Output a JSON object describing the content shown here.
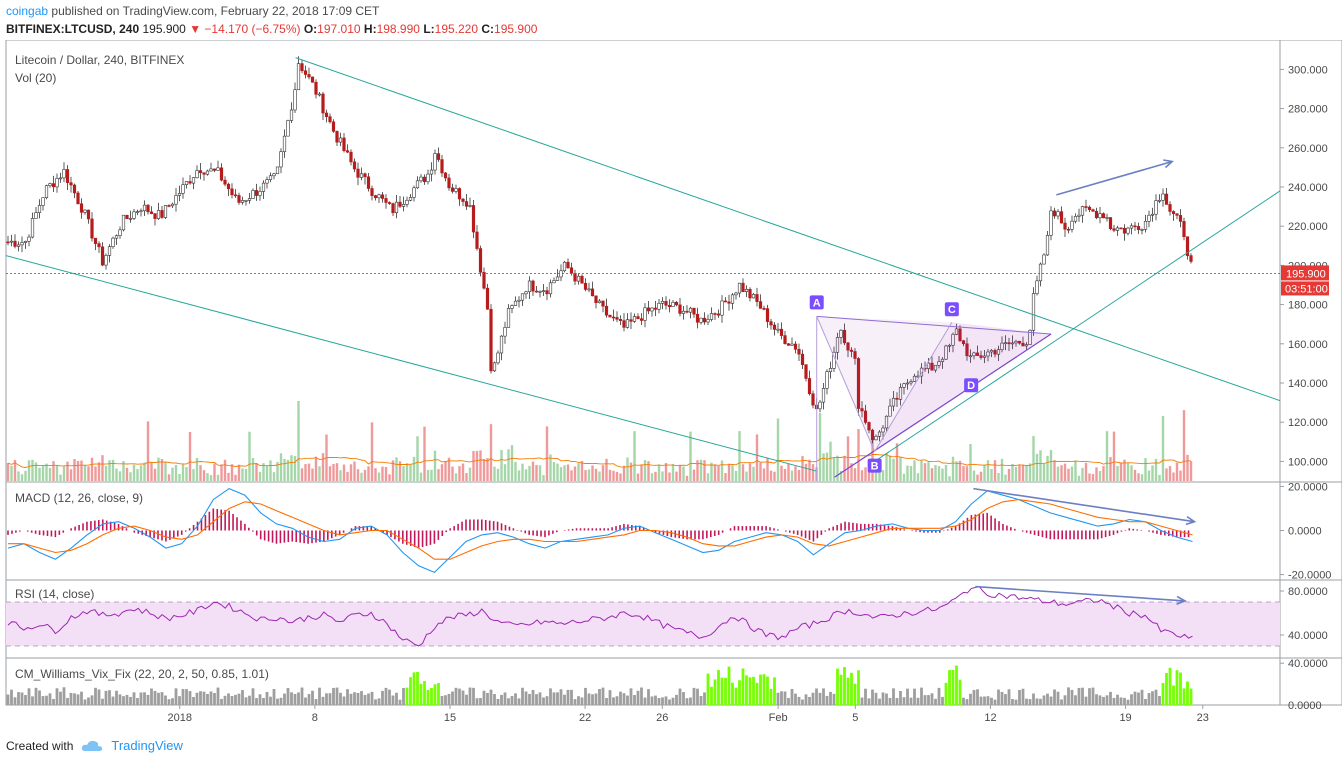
{
  "header": {
    "user": "coingab",
    "published_text": "published on TradingView.com, February 22, 2018 17:09 CET",
    "symbol": "BITFINEX:LTCUSD, 240",
    "last": "195.900",
    "change": "▼ −14.170 (−6.75%)",
    "o_label": "O:",
    "o_value": "197.010",
    "h_label": "H:",
    "h_value": "198.990",
    "l_label": "L:",
    "l_value": "195.220",
    "c_label": "C:",
    "c_value": "195.900"
  },
  "footer": {
    "created_with": "Created with",
    "brand": "TradingView"
  },
  "colors": {
    "up": "#4caf50",
    "down": "#b71c1c",
    "vol_up": "#a5d6a7",
    "vol_down": "#ef9a9a",
    "trend": "#26a69a",
    "pattern": "#9c27b0",
    "macd": "#2196f3",
    "signal": "#ff6d00",
    "rsi": "#9c27b0",
    "rsi_band": "#f3e0f7",
    "divergence": "#6b7fc4",
    "price_line": "#e53935"
  },
  "chart_data": [
    {
      "type": "candlestick",
      "title": "Litecoin / Dollar, 240, BITFINEX",
      "subtitle": "Vol (20)",
      "ylim": [
        90,
        315
      ],
      "yticks": [
        "300.000",
        "280.000",
        "260.000",
        "240.000",
        "220.000",
        "200.000",
        "180.000",
        "160.000",
        "140.000",
        "120.000",
        "100.000"
      ],
      "xticks": [
        "2018",
        "8",
        "15",
        "22",
        "26",
        "Feb",
        "5",
        "12",
        "19",
        "23"
      ],
      "last_price_label": "195.900",
      "countdown_label": "03:51:00",
      "x_anchors": [
        {
          "date": "2017-12-24",
          "price": 212
        },
        {
          "date": "2017-12-25",
          "price": 238
        },
        {
          "date": "2017-12-26",
          "price": 248
        },
        {
          "date": "2017-12-27",
          "price": 228
        },
        {
          "date": "2017-12-28",
          "price": 202
        },
        {
          "date": "2017-12-29",
          "price": 222
        },
        {
          "date": "2017-12-30",
          "price": 230
        },
        {
          "date": "2017-12-31",
          "price": 225
        },
        {
          "date": "2018-01-02",
          "price": 250
        },
        {
          "date": "2018-01-03",
          "price": 247
        },
        {
          "date": "2018-01-04",
          "price": 232
        },
        {
          "date": "2018-01-05",
          "price": 238
        },
        {
          "date": "2018-01-06",
          "price": 245
        },
        {
          "date": "2018-01-07",
          "price": 292
        },
        {
          "date": "2018-01-07",
          "price": 304
        },
        {
          "date": "2018-01-08",
          "price": 290
        },
        {
          "date": "2018-01-09",
          "price": 268
        },
        {
          "date": "2018-01-10",
          "price": 250
        },
        {
          "date": "2018-01-11",
          "price": 238
        },
        {
          "date": "2018-01-12",
          "price": 228
        },
        {
          "date": "2018-01-13",
          "price": 238
        },
        {
          "date": "2018-01-14",
          "price": 248
        },
        {
          "date": "2018-01-14",
          "price": 260
        },
        {
          "date": "2018-01-15",
          "price": 240
        },
        {
          "date": "2018-01-16",
          "price": 232
        },
        {
          "date": "2018-01-17",
          "price": 175
        },
        {
          "date": "2018-01-17",
          "price": 143
        },
        {
          "date": "2018-01-18",
          "price": 175
        },
        {
          "date": "2018-01-19",
          "price": 190
        },
        {
          "date": "2018-01-20",
          "price": 188
        },
        {
          "date": "2018-01-21",
          "price": 200
        },
        {
          "date": "2018-01-22",
          "price": 188
        },
        {
          "date": "2018-01-23",
          "price": 176
        },
        {
          "date": "2018-01-24",
          "price": 168
        },
        {
          "date": "2018-01-25",
          "price": 175
        },
        {
          "date": "2018-01-26",
          "price": 180
        },
        {
          "date": "2018-01-27",
          "price": 178
        },
        {
          "date": "2018-01-28",
          "price": 172
        },
        {
          "date": "2018-01-29",
          "price": 178
        },
        {
          "date": "2018-01-30",
          "price": 190
        },
        {
          "date": "2018-01-31",
          "price": 180
        },
        {
          "date": "2018-02-01",
          "price": 165
        },
        {
          "date": "2018-02-02",
          "price": 158
        },
        {
          "date": "2018-02-03",
          "price": 125
        },
        {
          "date": "2018-02-03",
          "price": 130
        },
        {
          "date": "2018-02-04",
          "price": 160
        },
        {
          "date": "2018-02-04",
          "price": 170
        },
        {
          "date": "2018-02-05",
          "price": 150
        },
        {
          "date": "2018-02-05",
          "price": 130
        },
        {
          "date": "2018-02-06",
          "price": 110
        },
        {
          "date": "2018-02-07",
          "price": 130
        },
        {
          "date": "2018-02-08",
          "price": 145
        },
        {
          "date": "2018-02-09",
          "price": 148
        },
        {
          "date": "2018-02-10",
          "price": 160
        },
        {
          "date": "2018-02-10",
          "price": 168
        },
        {
          "date": "2018-02-11",
          "price": 152
        },
        {
          "date": "2018-02-12",
          "price": 156
        },
        {
          "date": "2018-02-13",
          "price": 160
        },
        {
          "date": "2018-02-14",
          "price": 162
        },
        {
          "date": "2018-02-14",
          "price": 180
        },
        {
          "date": "2018-02-15",
          "price": 215
        },
        {
          "date": "2018-02-15",
          "price": 230
        },
        {
          "date": "2018-02-16",
          "price": 218
        },
        {
          "date": "2018-02-16",
          "price": 225
        },
        {
          "date": "2018-02-17",
          "price": 228
        },
        {
          "date": "2018-02-18",
          "price": 226
        },
        {
          "date": "2018-02-18",
          "price": 220
        },
        {
          "date": "2018-02-19",
          "price": 218
        },
        {
          "date": "2018-02-20",
          "price": 222
        },
        {
          "date": "2018-02-21",
          "price": 240
        },
        {
          "date": "2018-02-21",
          "price": 230
        },
        {
          "date": "2018-02-22",
          "price": 218
        },
        {
          "date": "2018-02-22",
          "price": 210
        },
        {
          "date": "2018-02-22",
          "price": 204
        },
        {
          "date": "2018-02-22",
          "price": 196
        }
      ],
      "trendlines": [
        {
          "from": {
            "date": "2018-01-07",
            "price": 306
          },
          "to": {
            "date": "2018-02-27",
            "price": 131
          }
        },
        {
          "from": {
            "date": "2017-12-23",
            "price": 205
          },
          "to": {
            "date": "2018-02-03",
            "price": 95
          }
        },
        {
          "from": {
            "date": "2018-02-06",
            "price": 100
          },
          "to": {
            "date": "2018-02-27",
            "price": 238
          }
        }
      ],
      "pattern_points": [
        {
          "label": "A",
          "date": "2018-02-03",
          "price": 174
        },
        {
          "label": "B",
          "date": "2018-02-06",
          "price": 105
        },
        {
          "label": "C",
          "date": "2018-02-10",
          "price": 171
        },
        {
          "label": "D",
          "date": "2018-02-11",
          "price": 146
        }
      ]
    },
    {
      "type": "line",
      "title": "MACD (12, 26, close, 9)",
      "ylim": [
        -22,
        22
      ],
      "yticks": [
        "20.0000",
        "0.0000",
        "-20.0000"
      ],
      "series": [
        {
          "values": [
            -8,
            -6,
            -10,
            -13,
            -8,
            -2,
            3,
            4,
            1,
            -3,
            -8,
            -6,
            2,
            14,
            19,
            16,
            8,
            3,
            1,
            -3,
            -5,
            -4,
            1,
            2,
            -2,
            -10,
            -16,
            -19,
            -12,
            -5,
            -2,
            -1,
            -3,
            -6,
            -8,
            -5,
            -4,
            -3,
            -2,
            1,
            2,
            -1,
            -4,
            -7,
            -10,
            -9,
            -5,
            -3,
            -1,
            -2,
            -5,
            -11,
            -6,
            -1,
            0,
            2,
            3,
            1,
            0,
            0,
            4,
            12,
            18,
            16,
            14,
            11,
            8,
            6,
            4,
            2,
            3,
            5,
            4,
            0,
            -3,
            -5
          ]
        },
        {
          "values": [
            -6,
            -6,
            -8,
            -10,
            -9,
            -6,
            -2,
            1,
            2,
            0,
            -3,
            -4,
            -2,
            4,
            10,
            13,
            12,
            9,
            6,
            3,
            0,
            -2,
            -1,
            0,
            0,
            -4,
            -8,
            -13,
            -13,
            -10,
            -7,
            -5,
            -4,
            -4,
            -5,
            -5,
            -5,
            -4,
            -3,
            -2,
            0,
            0,
            -1,
            -3,
            -6,
            -7,
            -7,
            -5,
            -3,
            -2,
            -3,
            -6,
            -7,
            -5,
            -3,
            -1,
            1,
            1,
            1,
            1,
            2,
            5,
            10,
            13,
            14,
            13,
            12,
            10,
            8,
            6,
            5,
            4,
            4,
            2,
            0,
            -2
          ]
        }
      ]
    },
    {
      "type": "line",
      "title": "RSI (14, close)",
      "ylim": [
        20,
        90
      ],
      "yticks": [
        "80.0000",
        "40.0000"
      ],
      "band": [
        30,
        70
      ],
      "series": [
        {
          "values": [
            52,
            46,
            50,
            44,
            56,
            62,
            58,
            60,
            64,
            60,
            55,
            58,
            62,
            70,
            66,
            60,
            54,
            56,
            52,
            56,
            58,
            52,
            58,
            60,
            50,
            36,
            30,
            48,
            56,
            58,
            62,
            52,
            48,
            50,
            52,
            50,
            52,
            54,
            56,
            60,
            58,
            52,
            46,
            42,
            38,
            48,
            58,
            48,
            40,
            38,
            46,
            50,
            56,
            62,
            60,
            55,
            58,
            60,
            62,
            64,
            72,
            84,
            78,
            76,
            74,
            72,
            70,
            68,
            70,
            72,
            66,
            60,
            58,
            44,
            40,
            36
          ]
        }
      ],
      "divergence": {
        "from": 61,
        "to": 73
      }
    },
    {
      "type": "bar",
      "title": "CM_Williams_Vix_Fix (22, 20, 2, 50, 0.85, 1.01)",
      "ylim": [
        0,
        45
      ],
      "yticks": [
        "40.0000",
        "0.0000"
      ]
    }
  ]
}
